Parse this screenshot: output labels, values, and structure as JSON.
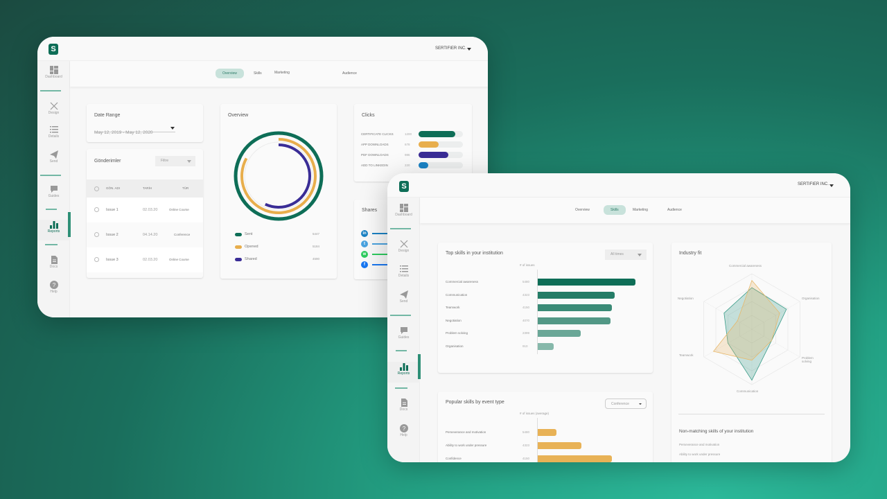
{
  "window1": {
    "company": "SERTIFIER INC.",
    "sidebar": [
      {
        "label": "Dashboard",
        "icon": "dashboard"
      },
      {
        "label": "Design",
        "icon": "design"
      },
      {
        "label": "Details",
        "icon": "details"
      },
      {
        "label": "Send",
        "icon": "send"
      },
      {
        "label": "Guides",
        "icon": "guides"
      },
      {
        "label": "Reports",
        "icon": "reports",
        "active": true
      },
      {
        "label": "Docs",
        "icon": "docs"
      },
      {
        "label": "Help",
        "icon": "help"
      }
    ],
    "tabs": [
      {
        "label": "Overview",
        "active": true
      },
      {
        "label": "Skills"
      },
      {
        "label": "Marketing"
      },
      {
        "label": "Audience"
      }
    ],
    "date_range": {
      "title": "Date Range",
      "value": "May 12, 2019 - May 12, 2020"
    },
    "submissions": {
      "title": "Gönderimler",
      "filter": "Filtre",
      "columns": [
        "GÖN. ADI",
        "TARİH",
        "TÜR"
      ],
      "rows": [
        {
          "name": "Issue 1",
          "date": "02.03.20",
          "type": "Online Course"
        },
        {
          "name": "Issue 2",
          "date": "04.14.20",
          "type": "Conference"
        },
        {
          "name": "Issue 3",
          "date": "02.03.20",
          "type": "Online Course"
        }
      ]
    },
    "overview": {
      "title": "Overview",
      "series": [
        {
          "name": "Sent",
          "value": "5447",
          "color": "#0e6e57",
          "fill": 1.0
        },
        {
          "name": "Opened",
          "value": "5184",
          "color": "#e8ae4c",
          "fill": 0.83
        },
        {
          "name": "Shared",
          "value": "4590",
          "color": "#3a2d96",
          "fill": 0.57
        }
      ]
    },
    "clicks": {
      "title": "Clicks",
      "items": [
        {
          "label": "CERTIFICATE CLICKS",
          "value": "1200",
          "color": "#0e6e57",
          "fill": 0.83
        },
        {
          "label": "APP DOWNLOADS",
          "value": "678",
          "color": "#e8ae4c",
          "fill": 0.45
        },
        {
          "label": "PDF DOWNLOADS",
          "value": "986",
          "color": "#3a2d96",
          "fill": 0.67
        },
        {
          "label": "ADD TO LINKEDIN",
          "value": "220",
          "color": "#1a82c4",
          "fill": 0.22
        }
      ]
    },
    "shares": {
      "title": "Shares",
      "items": [
        {
          "icon": "linkedin",
          "color": "#1a82c4"
        },
        {
          "icon": "twitter",
          "color": "#4aa3e0"
        },
        {
          "icon": "whatsapp",
          "color": "#2ecc5f"
        },
        {
          "icon": "facebook",
          "color": "#1877f2"
        }
      ]
    }
  },
  "window2": {
    "company": "SERTIFIER INC.",
    "sidebar": [
      {
        "label": "Dashboard",
        "icon": "dashboard"
      },
      {
        "label": "Design",
        "icon": "design"
      },
      {
        "label": "Details",
        "icon": "details"
      },
      {
        "label": "Send",
        "icon": "send"
      },
      {
        "label": "Guides",
        "icon": "guides"
      },
      {
        "label": "Reports",
        "icon": "reports",
        "active": true
      },
      {
        "label": "Docs",
        "icon": "docs"
      },
      {
        "label": "Help",
        "icon": "help"
      }
    ],
    "tabs": [
      {
        "label": "Overview"
      },
      {
        "label": "Skills",
        "active": true
      },
      {
        "label": "Marketing"
      },
      {
        "label": "Audience"
      }
    ],
    "top_skills": {
      "title": "Top skills in your institution",
      "filter": "All times",
      "axis_label": "# of issues",
      "max": 5480,
      "items": [
        {
          "label": "Commercial awareness",
          "value": 5480,
          "color": "#0e6e57"
        },
        {
          "label": "Communication",
          "value": 4323,
          "color": "#247d67"
        },
        {
          "label": "Teamwork",
          "value": 4150,
          "color": "#3a8a76"
        },
        {
          "label": "Negotiation",
          "value": 4070,
          "color": "#529886"
        },
        {
          "label": "Problem solving",
          "value": 2399,
          "color": "#6aa797"
        },
        {
          "label": "Organisation",
          "value": 910,
          "color": "#86b8aa"
        }
      ]
    },
    "popular_skills": {
      "title": "Popular skills by event type",
      "filter": "Conference",
      "axis_label": "# of issues (average)",
      "items": [
        {
          "label": "Perseverance and motivation",
          "value": "5480",
          "fill": 0.19
        },
        {
          "label": "Ability to work under pressure",
          "value": "4323",
          "fill": 0.45
        },
        {
          "label": "Confidence",
          "value": "4150",
          "fill": 0.76
        }
      ]
    },
    "industry_fit": {
      "title": "Industry fit",
      "axes": [
        "Commercial awareness",
        "Organisation",
        "Problem solving",
        "Communication",
        "Teamwork",
        "Negotiation"
      ],
      "series": [
        {
          "color": "#3a9c89",
          "values": [
            0.75,
            0.72,
            0.41,
            0.92,
            0.5,
            0.58
          ]
        },
        {
          "color": "#e8b86a",
          "values": [
            0.88,
            0.58,
            0.41,
            0.56,
            0.8,
            0.3
          ]
        }
      ]
    },
    "non_matching": {
      "title": "Non-matching skills of your institution",
      "items": [
        "Perseverance and motivation",
        "Ability to work under pressure"
      ]
    }
  }
}
